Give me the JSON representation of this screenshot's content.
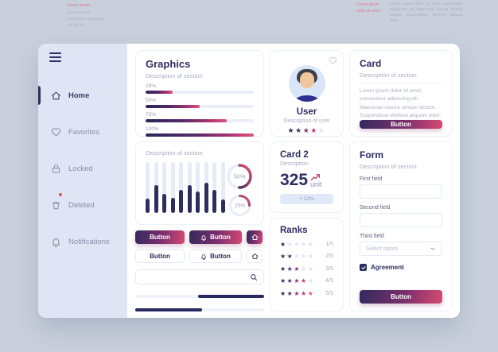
{
  "theme": {
    "navy": "#2d2e5f",
    "accent_pink": "#d84a72",
    "sidebar_bg": "#dfe5f4",
    "page_bg": "#c9d0dc",
    "star_colors": [
      "#2d2e5f",
      "#46306c",
      "#8c3474",
      "#c43b6e",
      "#e05a80"
    ],
    "star_empty": "#dee3ef",
    "stars_max": 5
  },
  "decor": {
    "left": {
      "accent": "Lorem ipsum",
      "text": "dolor sit amet consectetur adipiscing elit sed do"
    },
    "right": {
      "accent": "Lorem ipsum dolor sit amet",
      "text": "Lorem ipsum dolor sit amet, consectetur adipiscing elit. Maecenas viverra semper dictum. Suspendisse eleifend aliquam dolor."
    }
  },
  "sidebar": {
    "items": [
      {
        "label": "Home",
        "icon": "home",
        "active": true
      },
      {
        "label": "Favorites",
        "icon": "heart",
        "active": false
      },
      {
        "label": "Locked",
        "icon": "lock",
        "active": false
      },
      {
        "label": "Deleted",
        "icon": "trash",
        "active": false,
        "badge": true
      },
      {
        "label": "Notifications",
        "icon": "bell",
        "active": false
      }
    ]
  },
  "graphics": {
    "title": "Graphics",
    "description": "Description of section",
    "bars": [
      {
        "label": "25%",
        "value": 25
      },
      {
        "label": "50%",
        "value": 50
      },
      {
        "label": "75%",
        "value": 75
      },
      {
        "label": "100%",
        "value": 100
      }
    ]
  },
  "chart_card": {
    "description": "Description of section",
    "chart_data": {
      "type": "bar",
      "values": [
        28,
        55,
        38,
        30,
        46,
        55,
        42,
        60,
        45,
        26
      ],
      "ylim": [
        0,
        100
      ]
    },
    "donuts": [
      {
        "label": "50%",
        "value": 50
      },
      {
        "label": "25%",
        "value": 25
      }
    ]
  },
  "actions": {
    "primary": [
      {
        "label": "Button"
      },
      {
        "label": "Button",
        "icon": "bell"
      },
      {
        "icon": "home"
      }
    ],
    "secondary": [
      {
        "label": "Button"
      },
      {
        "label": "Button",
        "icon": "bell"
      },
      {
        "icon": "home"
      }
    ]
  },
  "search": {
    "value": ""
  },
  "sliders": [
    {
      "dark_left": 49,
      "dark_width": 51
    },
    {
      "dark_left": 0,
      "dark_width": 52
    }
  ],
  "user_card": {
    "title": "User",
    "description": "Description of  user",
    "rating": 4
  },
  "card2": {
    "title": "Card 2",
    "description": "Description",
    "value": "325",
    "unit": "unit",
    "badge": "+ 12%"
  },
  "ranks": {
    "title": "Ranks",
    "rows": [
      {
        "stars": 1,
        "label": "1/5"
      },
      {
        "stars": 2,
        "label": "2/5"
      },
      {
        "stars": 3,
        "label": "3/5"
      },
      {
        "stars": 4,
        "label": "4/5"
      },
      {
        "stars": 5,
        "label": "5/5"
      }
    ]
  },
  "info_card": {
    "title": "Card",
    "description": "Description of section",
    "body": "Lorem ipsum dolor sit amet, consectetur adipiscing elit. Maecenas viverra semper dictum. Suspendisse eleifend aliquam dolor.",
    "button_label": "Button"
  },
  "form": {
    "title": "Form",
    "description": "Description of  section",
    "fields": [
      {
        "label": "First field",
        "value": ""
      },
      {
        "label": "Second field",
        "value": ""
      }
    ],
    "select": {
      "label": "Third field",
      "placeholder": "Select option"
    },
    "checkbox_label": "Agreement",
    "checked": true,
    "button_label": "Button"
  }
}
